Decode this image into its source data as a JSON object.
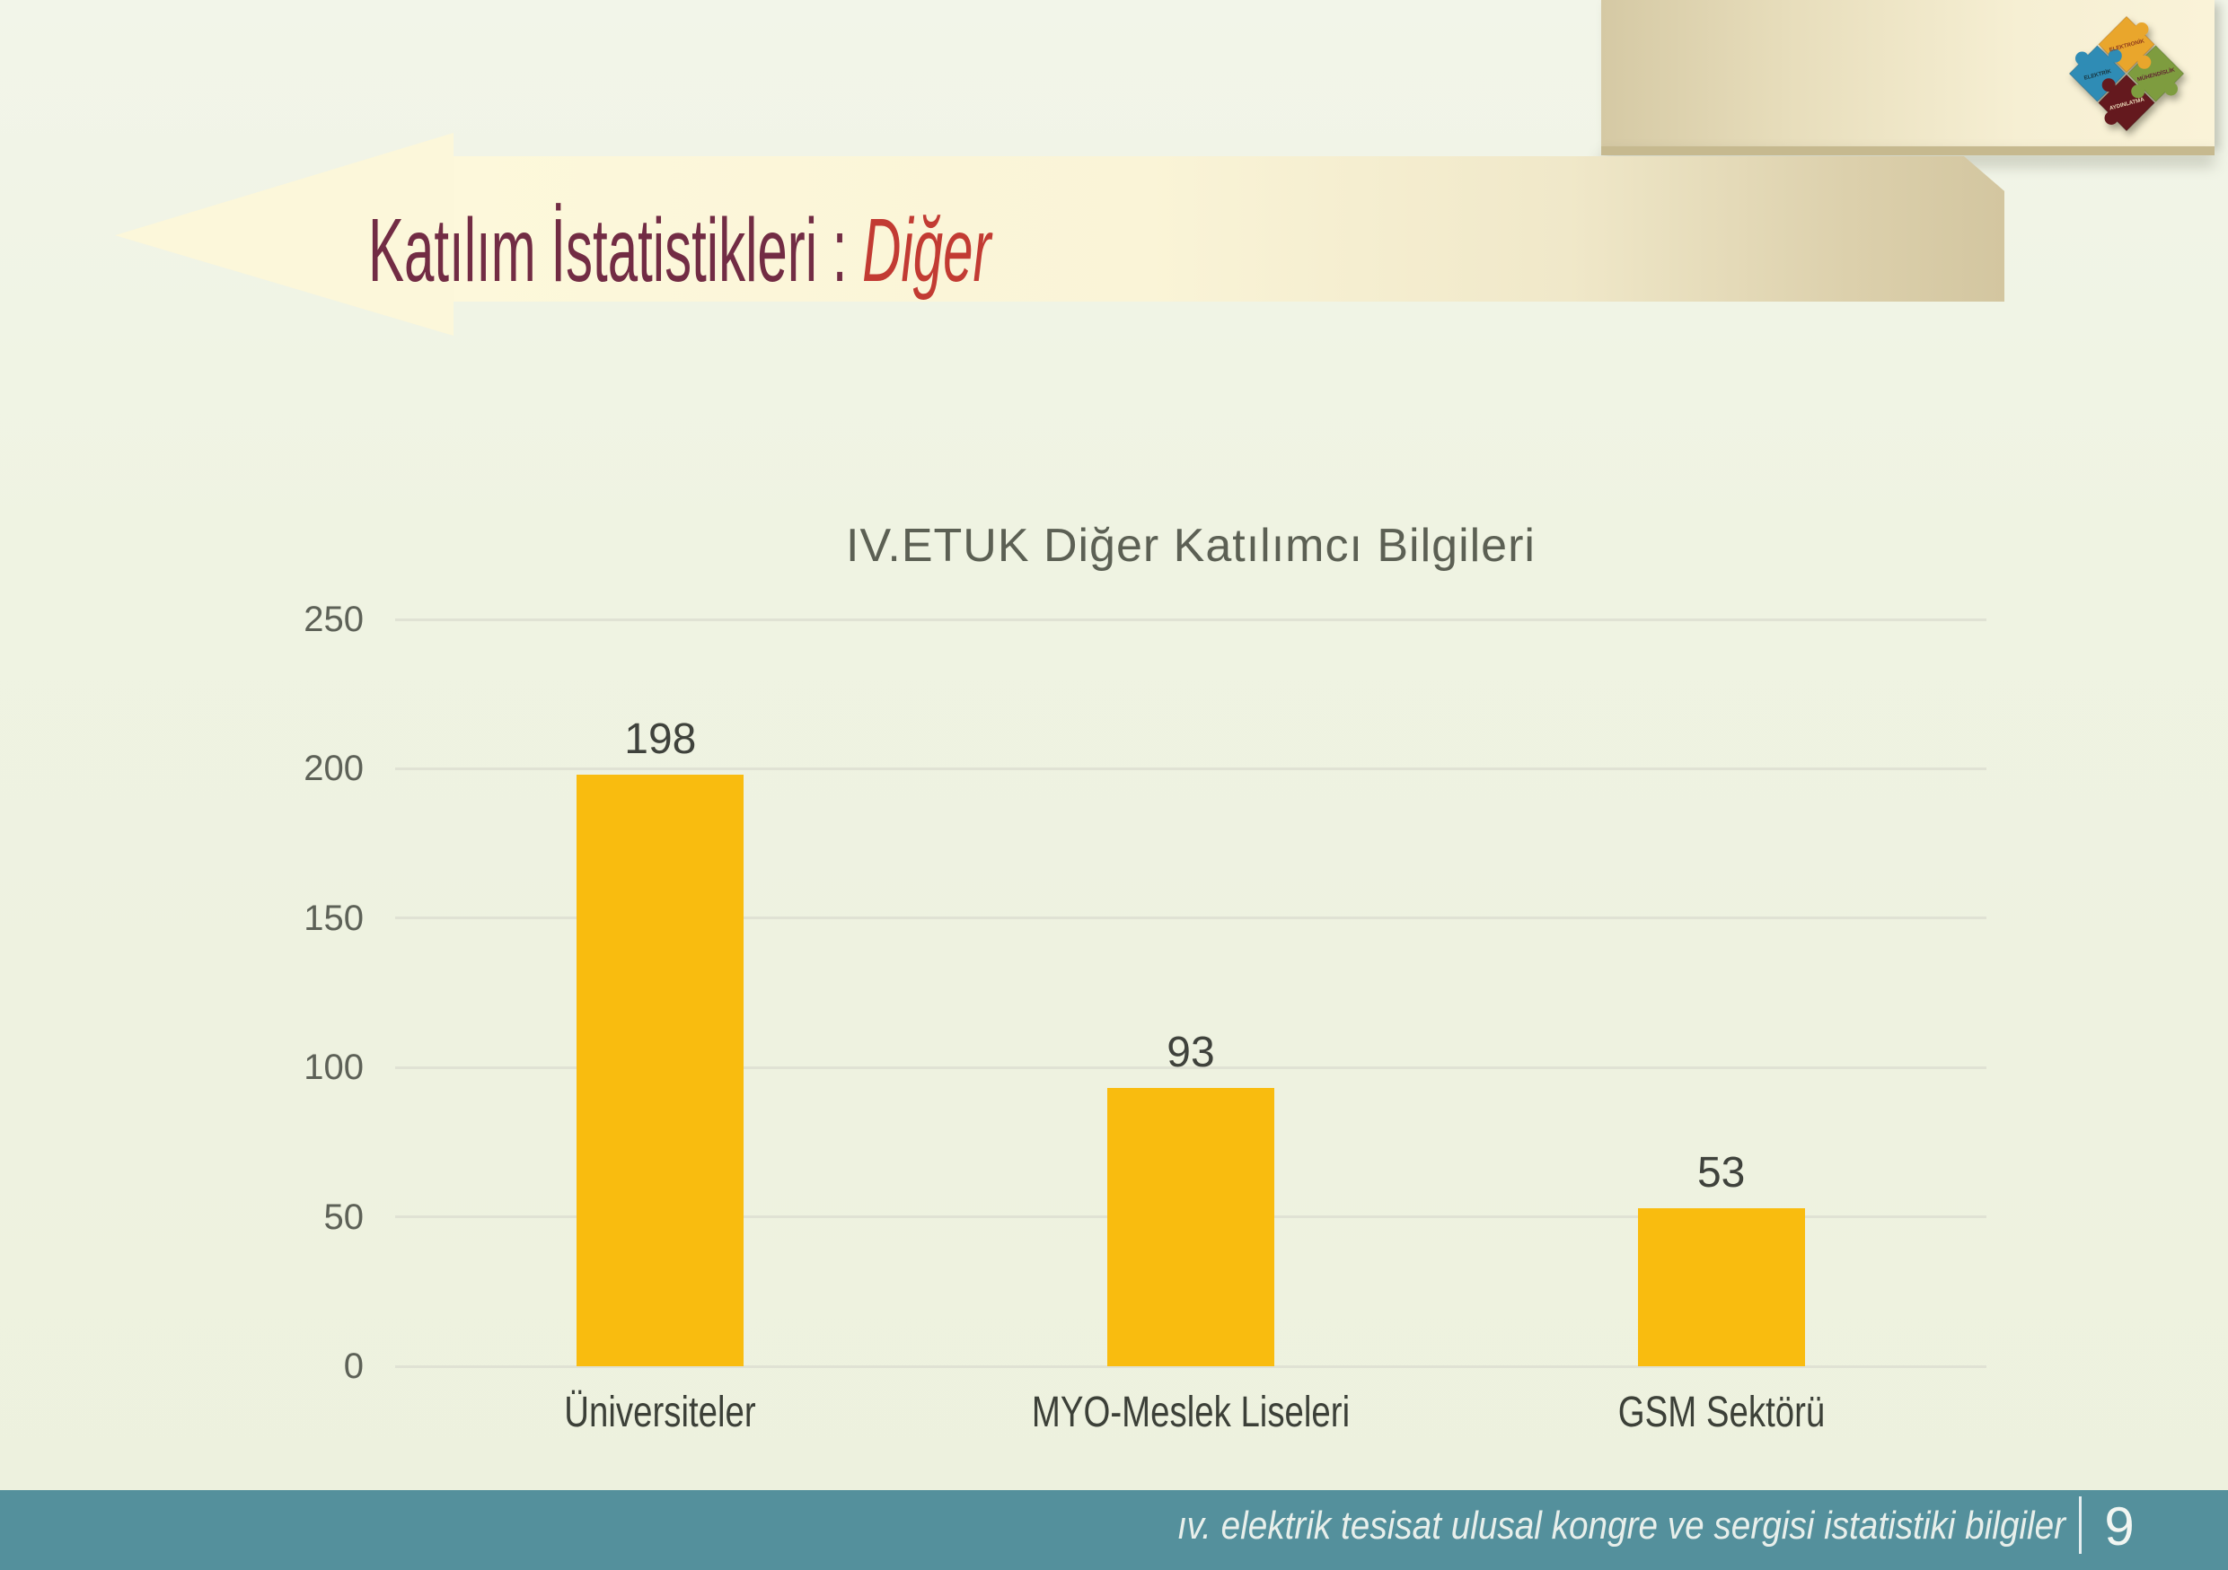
{
  "slide": {
    "header": {
      "title_main": "Katılım İstatistikleri : ",
      "title_accent": "Diğer"
    },
    "logo": {
      "pieces": [
        {
          "label": "ELEKTRONİK",
          "color": "#E9A62C",
          "text_color": "#8E3A1C"
        },
        {
          "label": "ELEKTRİK",
          "color": "#2F8CB5",
          "text_color": "#173B47"
        },
        {
          "label": "MÜHENDİSLİK",
          "color": "#7E9C3F",
          "text_color": "#5F2430"
        },
        {
          "label": "AYDINLATMA",
          "color": "#64191E",
          "text_color": "#E9D9B9"
        }
      ]
    },
    "footer": {
      "text": "ıv. elektrik tesisat ulusal kongre ve sergisi istatistiki bilgiler",
      "page_number": "9"
    },
    "colors": {
      "bar": "#F9BC0F",
      "footer": "#54909C",
      "title": "#722C44",
      "accent": "#C23B33"
    }
  },
  "chart_data": {
    "type": "bar",
    "title": "IV.ETUK Diğer Katılımcı Bilgileri",
    "categories": [
      "Üniversiteler",
      "MYO-Meslek Liseleri",
      "GSM Sektörü"
    ],
    "values": [
      198,
      93,
      53
    ],
    "xlabel": "",
    "ylabel": "",
    "ylim": [
      0,
      250
    ],
    "yticks": [
      0,
      50,
      100,
      150,
      200,
      250
    ],
    "grid": true,
    "legend": false,
    "value_labels": true,
    "bar_color": "#F9BC0F"
  }
}
